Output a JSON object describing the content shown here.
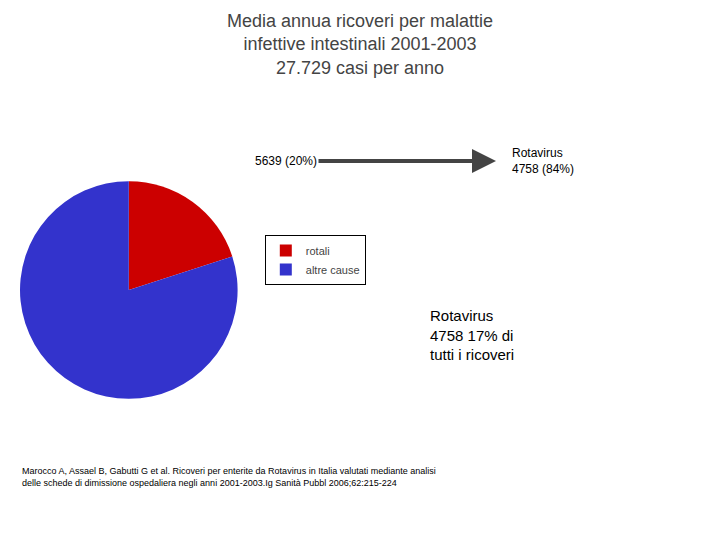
{
  "chart_data": {
    "type": "pie",
    "title": "Media annua ricoveri per malattie\ninfettive intestinali 2001-2003\n27.729 casi per anno",
    "categories": [
      "rotali",
      "altre cause"
    ],
    "values": [
      20,
      80
    ],
    "colors": [
      "#cc0000",
      "#3333cc"
    ],
    "legend": "right",
    "annotations": [
      "5639 (20%)",
      "Rotavirus\n4758 (84%)",
      "Rotavirus\n4758 17% di\ntutti i ricoveri",
      "Marocco A, Assael B, Gabutti G et al. Ricoveri per enterite da Rotavirus in Italia valutati mediante analisi\ndelle schede di dimissione ospedaliera negli anni 2001-2003.Ig Sanità Pubbl 2006;62:215-224"
    ]
  }
}
